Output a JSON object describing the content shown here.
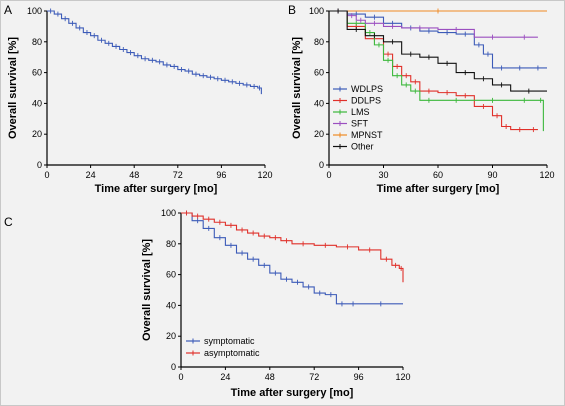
{
  "chart_data": [
    {
      "panel_label": "A",
      "type": "line",
      "xlabel": "Time after surgery [mo]",
      "ylabel": "Overall survival [%]",
      "xlim": [
        0,
        120
      ],
      "ylim": [
        0,
        100
      ],
      "xticks": [
        0,
        24,
        48,
        72,
        96,
        120
      ],
      "yticks": [
        0,
        20,
        40,
        60,
        80,
        100
      ],
      "series": [
        {
          "color": "#3c5bb8",
          "x": [
            0,
            4,
            8,
            12,
            16,
            20,
            24,
            28,
            32,
            36,
            40,
            44,
            48,
            52,
            56,
            60,
            64,
            68,
            72,
            76,
            80,
            84,
            88,
            92,
            96,
            100,
            104,
            108,
            112,
            116,
            118
          ],
          "y": [
            100,
            98,
            95,
            92,
            89,
            86,
            84,
            81,
            79,
            77,
            75,
            73,
            71,
            69,
            68,
            67,
            65,
            64,
            62,
            61,
            59,
            58,
            57,
            56,
            55,
            54,
            53,
            52,
            51,
            50,
            46
          ]
        }
      ]
    },
    {
      "panel_label": "B",
      "type": "line",
      "xlabel": "Time after surgery [mo]",
      "ylabel": "Overall survival [%]",
      "xlim": [
        0,
        120
      ],
      "ylim": [
        0,
        100
      ],
      "xticks": [
        0,
        30,
        60,
        90,
        120
      ],
      "yticks": [
        0,
        20,
        40,
        60,
        80,
        100
      ],
      "legend_position": "left",
      "series": [
        {
          "name": "WDLPS",
          "color": "#3c5bb8",
          "x": [
            0,
            10,
            20,
            30,
            40,
            50,
            60,
            70,
            80,
            85,
            90,
            100,
            110,
            120
          ],
          "y": [
            100,
            98,
            96,
            92,
            89,
            87,
            86,
            85,
            78,
            72,
            63,
            63,
            63,
            63
          ]
        },
        {
          "name": "DDLPS",
          "color": "#e0302a",
          "x": [
            0,
            10,
            20,
            30,
            35,
            40,
            45,
            50,
            60,
            70,
            80,
            90,
            95,
            100,
            110,
            115
          ],
          "y": [
            100,
            90,
            82,
            72,
            64,
            58,
            54,
            48,
            47,
            45,
            38,
            32,
            25,
            23,
            23,
            23
          ]
        },
        {
          "name": "LMS",
          "color": "#3cb83c",
          "x": [
            0,
            10,
            20,
            25,
            30,
            35,
            40,
            45,
            50,
            60,
            80,
            100,
            115,
            118
          ],
          "y": [
            100,
            92,
            86,
            78,
            68,
            58,
            52,
            48,
            42,
            42,
            42,
            42,
            42,
            22
          ]
        },
        {
          "name": "SFT",
          "color": "#9b4fc0",
          "x": [
            0,
            10,
            15,
            20,
            30,
            40,
            60,
            80,
            100,
            115
          ],
          "y": [
            100,
            97,
            94,
            92,
            90,
            89,
            88,
            83,
            83,
            83
          ]
        },
        {
          "name": "MPNST",
          "color": "#f08a24",
          "x": [
            0,
            120
          ],
          "y": [
            100,
            100
          ]
        },
        {
          "name": "Other",
          "color": "#111111",
          "x": [
            0,
            10,
            20,
            30,
            40,
            50,
            60,
            70,
            80,
            90,
            100,
            120
          ],
          "y": [
            100,
            88,
            84,
            80,
            72,
            70,
            66,
            60,
            56,
            52,
            48,
            48
          ]
        }
      ]
    },
    {
      "panel_label": "C",
      "type": "line",
      "xlabel": "Time after surgery [mo]",
      "ylabel": "Overall survival [%]",
      "xlim": [
        0,
        120
      ],
      "ylim": [
        0,
        100
      ],
      "xticks": [
        0,
        24,
        48,
        72,
        96,
        120
      ],
      "yticks": [
        0,
        20,
        40,
        60,
        80,
        100
      ],
      "legend_position": "bottom-left",
      "series": [
        {
          "name": "symptomatic",
          "color": "#3c5bb8",
          "x": [
            0,
            6,
            12,
            18,
            24,
            30,
            36,
            42,
            48,
            54,
            60,
            66,
            72,
            78,
            84,
            90,
            96,
            120
          ],
          "y": [
            100,
            95,
            90,
            84,
            79,
            74,
            70,
            66,
            61,
            57,
            55,
            52,
            48,
            47,
            41,
            41,
            41,
            41
          ]
        },
        {
          "name": "asymptomatic",
          "color": "#e0302a",
          "x": [
            0,
            6,
            12,
            18,
            24,
            30,
            36,
            42,
            48,
            54,
            60,
            72,
            84,
            96,
            108,
            114,
            118,
            120
          ],
          "y": [
            100,
            98,
            96,
            94,
            92,
            89,
            87,
            85,
            84,
            82,
            80,
            79,
            78,
            76,
            70,
            66,
            64,
            55
          ]
        }
      ]
    }
  ]
}
